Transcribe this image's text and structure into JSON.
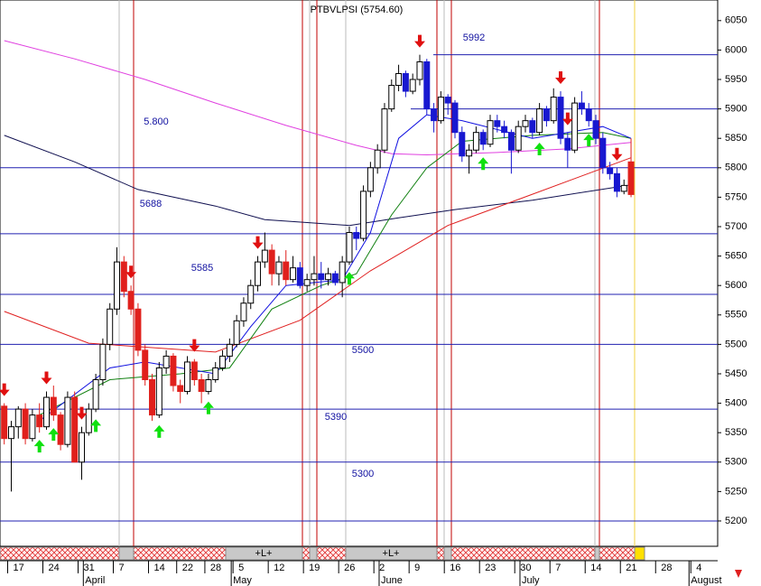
{
  "chart_data": {
    "type": "candlestick",
    "title": "PTBVLPSI (5754.60)",
    "candles": [
      [
        5395,
        5400,
        5330,
        5340
      ],
      [
        5340,
        5370,
        5250,
        5360
      ],
      [
        5360,
        5395,
        5340,
        5390
      ],
      [
        5390,
        5400,
        5330,
        5340
      ],
      [
        5340,
        5390,
        5335,
        5380
      ],
      [
        5380,
        5400,
        5350,
        5360
      ],
      [
        5360,
        5420,
        5355,
        5410
      ],
      [
        5410,
        5430,
        5370,
        5380
      ],
      [
        5380,
        5385,
        5320,
        5330
      ],
      [
        5330,
        5420,
        5325,
        5410
      ],
      [
        5410,
        5420,
        5300,
        5300
      ],
      [
        5300,
        5360,
        5270,
        5350
      ],
      [
        5350,
        5400,
        5345,
        5390
      ],
      [
        5390,
        5450,
        5385,
        5440
      ],
      [
        5440,
        5510,
        5430,
        5500
      ],
      [
        5500,
        5570,
        5490,
        5560
      ],
      [
        5560,
        5665,
        5550,
        5640
      ],
      [
        5640,
        5650,
        5580,
        5590
      ],
      [
        5590,
        5600,
        5550,
        5560
      ],
      [
        5560,
        5570,
        5480,
        5490
      ],
      [
        5490,
        5500,
        5430,
        5440
      ],
      [
        5440,
        5450,
        5370,
        5380
      ],
      [
        5380,
        5470,
        5375,
        5460
      ],
      [
        5460,
        5490,
        5450,
        5480
      ],
      [
        5480,
        5485,
        5420,
        5430
      ],
      [
        5430,
        5440,
        5400,
        5420
      ],
      [
        5420,
        5480,
        5415,
        5470
      ],
      [
        5470,
        5475,
        5430,
        5440
      ],
      [
        5440,
        5450,
        5400,
        5420
      ],
      [
        5420,
        5450,
        5415,
        5440
      ],
      [
        5440,
        5470,
        5435,
        5460
      ],
      [
        5460,
        5490,
        5455,
        5480
      ],
      [
        5480,
        5510,
        5470,
        5500
      ],
      [
        5500,
        5550,
        5495,
        5540
      ],
      [
        5540,
        5580,
        5530,
        5570
      ],
      [
        5570,
        5610,
        5560,
        5600
      ],
      [
        5600,
        5650,
        5590,
        5640
      ],
      [
        5640,
        5690,
        5630,
        5660
      ],
      [
        5660,
        5670,
        5600,
        5620
      ],
      [
        5620,
        5650,
        5600,
        5640
      ],
      [
        5640,
        5660,
        5600,
        5610
      ],
      [
        5610,
        5650,
        5605,
        5630
      ],
      [
        5630,
        5640,
        5595,
        5600
      ],
      [
        5600,
        5620,
        5590,
        5610
      ],
      [
        5610,
        5650,
        5600,
        5620
      ],
      [
        5620,
        5640,
        5595,
        5610
      ],
      [
        5610,
        5630,
        5600,
        5620
      ],
      [
        5620,
        5625,
        5600,
        5605
      ],
      [
        5605,
        5650,
        5580,
        5640
      ],
      [
        5640,
        5700,
        5635,
        5690
      ],
      [
        5690,
        5700,
        5660,
        5680
      ],
      [
        5680,
        5770,
        5675,
        5760
      ],
      [
        5760,
        5810,
        5750,
        5800
      ],
      [
        5800,
        5840,
        5790,
        5830
      ],
      [
        5830,
        5910,
        5825,
        5900
      ],
      [
        5900,
        5950,
        5895,
        5940
      ],
      [
        5940,
        5975,
        5930,
        5960
      ],
      [
        5960,
        5965,
        5920,
        5930
      ],
      [
        5930,
        5960,
        5925,
        5950
      ],
      [
        5950,
        5992,
        5940,
        5980
      ],
      [
        5980,
        5985,
        5890,
        5900
      ],
      [
        5900,
        5910,
        5860,
        5880
      ],
      [
        5880,
        5930,
        5875,
        5920
      ],
      [
        5920,
        5925,
        5890,
        5910
      ],
      [
        5910,
        5915,
        5850,
        5860
      ],
      [
        5860,
        5870,
        5810,
        5820
      ],
      [
        5820,
        5840,
        5790,
        5830
      ],
      [
        5830,
        5870,
        5825,
        5860
      ],
      [
        5860,
        5865,
        5830,
        5840
      ],
      [
        5840,
        5890,
        5835,
        5880
      ],
      [
        5880,
        5890,
        5860,
        5870
      ],
      [
        5870,
        5880,
        5850,
        5860
      ],
      [
        5860,
        5865,
        5790,
        5830
      ],
      [
        5830,
        5880,
        5825,
        5870
      ],
      [
        5870,
        5890,
        5860,
        5880
      ],
      [
        5880,
        5885,
        5850,
        5860
      ],
      [
        5860,
        5910,
        5855,
        5900
      ],
      [
        5900,
        5905,
        5870,
        5880
      ],
      [
        5880,
        5935,
        5875,
        5920
      ],
      [
        5920,
        5930,
        5840,
        5850
      ],
      [
        5850,
        5860,
        5800,
        5830
      ],
      [
        5830,
        5920,
        5825,
        5910
      ],
      [
        5910,
        5930,
        5890,
        5900
      ],
      [
        5900,
        5910,
        5870,
        5880
      ],
      [
        5880,
        5890,
        5840,
        5850
      ],
      [
        5850,
        5860,
        5790,
        5800
      ],
      [
        5800,
        5810,
        5780,
        5790
      ],
      [
        5790,
        5800,
        5750,
        5760
      ],
      [
        5760,
        5780,
        5755,
        5770
      ],
      [
        5810,
        5850,
        5750,
        5754.6
      ]
    ],
    "up_color": "#ffffff",
    "down_color_ranges": [
      [
        0,
        "#e0201c"
      ],
      [
        42,
        "#1818d0"
      ],
      [
        89,
        "#e0201c"
      ]
    ],
    "series": [
      {
        "color": "#e040e0",
        "x": [
          0,
          10,
          20,
          30,
          40,
          50,
          55,
          60,
          70,
          80,
          89
        ],
        "values": [
          6016,
          5985,
          5950,
          5910,
          5872,
          5838,
          5824,
          5822,
          5826,
          5832,
          5843
        ]
      },
      {
        "color": "#101050",
        "x": [
          0,
          10,
          19,
          30,
          37,
          49,
          56,
          64,
          75,
          89
        ],
        "values": [
          5855,
          5810,
          5763,
          5735,
          5712,
          5702,
          5715,
          5729,
          5745,
          5771
        ]
      },
      {
        "color": "#e02020",
        "x": [
          0,
          12,
          30,
          42,
          52,
          63,
          75,
          89
        ],
        "values": [
          5556,
          5502,
          5487,
          5541,
          5625,
          5702,
          5755,
          5817
        ]
      },
      {
        "color": "#108010",
        "x": [
          5,
          15,
          25,
          32,
          38,
          45,
          50,
          55,
          60,
          65,
          75,
          85,
          89
        ],
        "values": [
          5380,
          5440,
          5450,
          5460,
          5560,
          5600,
          5620,
          5720,
          5800,
          5845,
          5855,
          5860,
          5850
        ]
      },
      {
        "color": "#1010e0",
        "x": [
          5,
          15,
          20,
          30,
          35,
          40,
          48,
          52,
          56,
          60,
          65,
          75,
          85,
          89
        ],
        "values": [
          5370,
          5460,
          5470,
          5450,
          5530,
          5600,
          5610,
          5690,
          5850,
          5890,
          5880,
          5850,
          5870,
          5850
        ]
      }
    ],
    "sell_signals": [
      0,
      6,
      11,
      18,
      27,
      36,
      59,
      79,
      80,
      87
    ],
    "buy_signals": [
      5,
      7,
      13,
      22,
      29,
      49,
      68,
      76,
      83
    ],
    "levels": [
      {
        "value": 5992,
        "label": "5992"
      },
      {
        "value": 5900
      },
      {
        "value": 5800,
        "label": "5.800"
      },
      {
        "value": 5688,
        "label": "5688"
      },
      {
        "value": 5585,
        "label": "5585"
      },
      {
        "value": 5500,
        "label": "5500"
      },
      {
        "value": 5390,
        "label": "5390"
      },
      {
        "value": 5300,
        "label": "5300"
      },
      {
        "value": 5200
      }
    ],
    "band_labels": [
      "+L+",
      "+L+"
    ],
    "xlim": [
      -0.6,
      101.3
    ],
    "ylim": [
      5157,
      6085
    ],
    "yticks": [
      5200,
      5250,
      5300,
      5350,
      5400,
      5450,
      5500,
      5550,
      5600,
      5650,
      5700,
      5750,
      5800,
      5850,
      5900,
      5950,
      6000,
      6050
    ],
    "xticks": [
      {
        "value": 1,
        "label": "17"
      },
      {
        "value": 6,
        "label": "24"
      },
      {
        "value": 11,
        "label": "31"
      },
      {
        "value": 16,
        "label": "7"
      },
      {
        "value": 21,
        "label": "14"
      },
      {
        "value": 25,
        "label": "22"
      },
      {
        "value": 29,
        "label": "28"
      },
      {
        "value": 33,
        "label": "5"
      },
      {
        "value": 38,
        "label": "12"
      },
      {
        "value": 43,
        "label": "19"
      },
      {
        "value": 48,
        "label": "26"
      },
      {
        "value": 53,
        "label": "2"
      },
      {
        "value": 58,
        "label": "9"
      },
      {
        "value": 63,
        "label": "16"
      },
      {
        "value": 68,
        "label": "23"
      },
      {
        "value": 73,
        "label": "30"
      },
      {
        "value": 78,
        "label": "7"
      },
      {
        "value": 83,
        "label": "14"
      },
      {
        "value": 88,
        "label": "21"
      },
      {
        "value": 93,
        "label": "28"
      },
      {
        "value": 98,
        "label": "4"
      }
    ],
    "months": [
      {
        "value": 12,
        "label": "April"
      },
      {
        "value": 33,
        "label": "May"
      },
      {
        "value": 54,
        "label": "June"
      },
      {
        "value": 74,
        "label": "July"
      },
      {
        "value": 98,
        "label": "August"
      }
    ]
  }
}
